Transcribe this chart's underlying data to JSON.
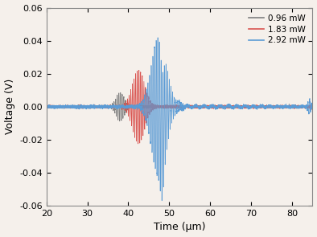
{
  "title": "",
  "xlabel": "Time (μm)",
  "ylabel": "Voltage (V)",
  "xlim": [
    20,
    85
  ],
  "ylim": [
    -0.06,
    0.06
  ],
  "xticks": [
    20,
    30,
    40,
    50,
    60,
    70,
    80
  ],
  "yticks": [
    -0.06,
    -0.04,
    -0.02,
    0.0,
    0.02,
    0.04,
    0.06
  ],
  "legend": [
    "0.96 mW",
    "1.83 mW",
    "2.92 mW"
  ],
  "colors": [
    "#7f7f7f",
    "#d9534f",
    "#5b9bd5"
  ],
  "figsize": [
    3.94,
    2.95
  ],
  "dpi": 100,
  "bg_color": "#f5f0eb",
  "spine_color": "#888888"
}
